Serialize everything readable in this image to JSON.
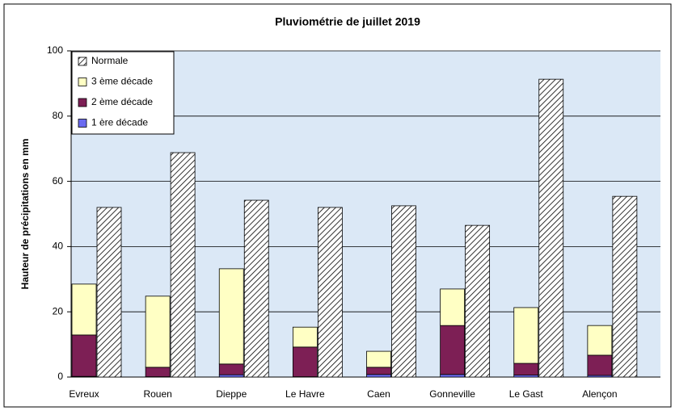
{
  "chart_data": {
    "type": "bar",
    "stacked": true,
    "title": "Pluviométrie de juillet 2019",
    "ylabel": "Hauteur de précipitations en mm",
    "categories": [
      "Evreux",
      "Rouen",
      "Dieppe",
      "Le Havre",
      "Caen",
      "Gonneville",
      "Le Gast",
      "Alençon"
    ],
    "series": [
      {
        "name": "1 ère décade",
        "color": "#6a6af0",
        "group": 0,
        "values": [
          0.2,
          0.1,
          0.7,
          0.1,
          0.8,
          0.8,
          0.6,
          0.5
        ]
      },
      {
        "name": "2 ème décade",
        "color": "#7d1f55",
        "group": 0,
        "values": [
          12.7,
          2.9,
          3.3,
          9.1,
          2.2,
          15.0,
          3.6,
          6.2
        ]
      },
      {
        "name": "3 ème décade",
        "color": "#ffffc4",
        "group": 0,
        "values": [
          15.6,
          21.8,
          29.2,
          6.1,
          4.9,
          11.2,
          17.1,
          9.1
        ]
      },
      {
        "name": "Normale",
        "color": "#ffffff",
        "pattern": "hatch",
        "group": 1,
        "values": [
          52,
          68.8,
          54.2,
          52,
          52.5,
          46.5,
          91.3,
          55.4
        ]
      }
    ],
    "ylim": [
      0,
      100
    ],
    "yticks": [
      0,
      20,
      40,
      60,
      80,
      100
    ],
    "grid": true,
    "legend": "top-left"
  }
}
